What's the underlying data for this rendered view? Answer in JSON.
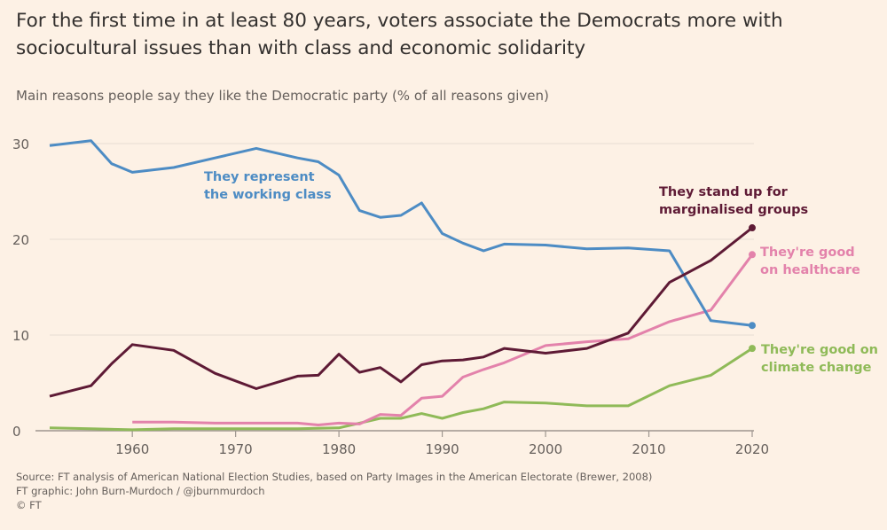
{
  "title": "For the first time in at least 80 years, voters associate the Democrats more with sociocultural issues than with class and economic solidarity",
  "subtitle": "Main reasons people say they like the Democratic party (% of all reasons given)",
  "footer": {
    "source": "Source: FT analysis of American National Election Studies, based on Party Images in the American Electorate (Brewer, 2008)",
    "graphic": "FT graphic: John Burn-Murdoch / @jburnmurdoch",
    "copyright": "© FT"
  },
  "chart_data": {
    "type": "line",
    "xlim": [
      1952,
      2020
    ],
    "ylim": [
      0,
      30
    ],
    "x_ticks": [
      1960,
      1970,
      1980,
      1990,
      2000,
      2010,
      2020
    ],
    "y_ticks": [
      0,
      10,
      20,
      30
    ],
    "grid": "horizontal",
    "series": [
      {
        "name": "They represent the working class",
        "color": "#4d8cc4",
        "x": [
          1952,
          1956,
          1958,
          1960,
          1964,
          1968,
          1972,
          1976,
          1978,
          1980,
          1982,
          1984,
          1986,
          1988,
          1990,
          1992,
          1994,
          1996,
          2000,
          2004,
          2008,
          2012,
          2016,
          2020
        ],
        "y": [
          29.8,
          30.3,
          27.9,
          27.0,
          27.5,
          28.5,
          29.5,
          28.5,
          28.1,
          26.7,
          23.0,
          22.3,
          22.5,
          23.8,
          20.6,
          19.6,
          18.8,
          19.5,
          19.4,
          19.0,
          19.1,
          18.8,
          11.5,
          11.0
        ]
      },
      {
        "name": "They stand up for marginalised groups",
        "color": "#5e1a35",
        "x": [
          1952,
          1956,
          1958,
          1960,
          1964,
          1968,
          1972,
          1976,
          1978,
          1980,
          1982,
          1984,
          1986,
          1988,
          1990,
          1992,
          1994,
          1996,
          2000,
          2004,
          2008,
          2012,
          2016,
          2020
        ],
        "y": [
          3.6,
          4.7,
          7.0,
          9.0,
          8.4,
          6.0,
          4.4,
          5.7,
          5.8,
          8.0,
          6.1,
          6.6,
          5.1,
          6.9,
          7.3,
          7.4,
          7.7,
          8.6,
          8.1,
          8.6,
          10.2,
          15.5,
          17.8,
          21.2
        ]
      },
      {
        "name": "They're good on healthcare",
        "color": "#e382ab",
        "x": [
          1960,
          1964,
          1968,
          1972,
          1976,
          1978,
          1980,
          1982,
          1984,
          1986,
          1988,
          1990,
          1992,
          1994,
          1996,
          2000,
          2004,
          2008,
          2012,
          2016,
          2020
        ],
        "y": [
          0.9,
          0.9,
          0.8,
          0.8,
          0.8,
          0.6,
          0.8,
          0.7,
          1.7,
          1.6,
          3.4,
          3.6,
          5.6,
          6.4,
          7.1,
          8.9,
          9.3,
          9.6,
          11.4,
          12.6,
          18.4
        ]
      },
      {
        "name": "They're good on climate change",
        "color": "#8fba58",
        "x": [
          1952,
          1956,
          1960,
          1964,
          1968,
          1972,
          1976,
          1980,
          1984,
          1986,
          1988,
          1990,
          1992,
          1994,
          1996,
          2000,
          2004,
          2008,
          2012,
          2016,
          2020
        ],
        "y": [
          0.3,
          0.2,
          0.1,
          0.2,
          0.2,
          0.2,
          0.2,
          0.3,
          1.3,
          1.3,
          1.8,
          1.3,
          1.9,
          2.3,
          3.0,
          2.9,
          2.6,
          2.6,
          4.7,
          5.8,
          8.6
        ]
      }
    ],
    "labels": {
      "working_class": [
        "They represent",
        "the working class"
      ],
      "marginalised": [
        "They stand up for",
        "marginalised groups"
      ],
      "healthcare": [
        "They're good",
        "on healthcare"
      ],
      "climate": [
        "They're good on",
        "climate change"
      ]
    }
  }
}
